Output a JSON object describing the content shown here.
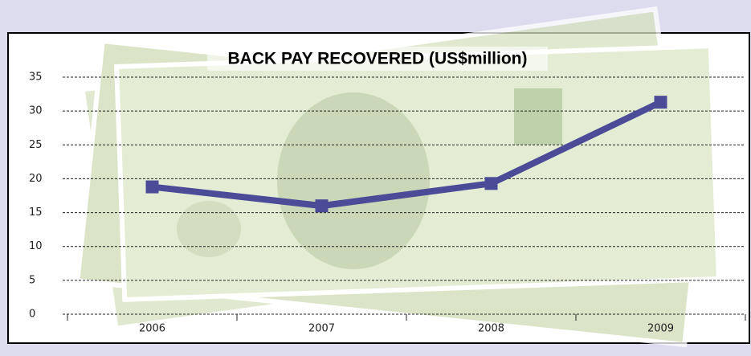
{
  "chart_data": {
    "type": "line",
    "title": "BACK PAY RECOVERED (US$million)",
    "categories": [
      "2006",
      "2007",
      "2008",
      "2009"
    ],
    "values": [
      18.8,
      16.0,
      19.3,
      31.3
    ],
    "color": "#4b4b97",
    "ylim": [
      0,
      35
    ],
    "yticks": [
      0,
      5,
      10,
      15,
      20,
      25,
      30,
      35
    ],
    "grid": true
  }
}
